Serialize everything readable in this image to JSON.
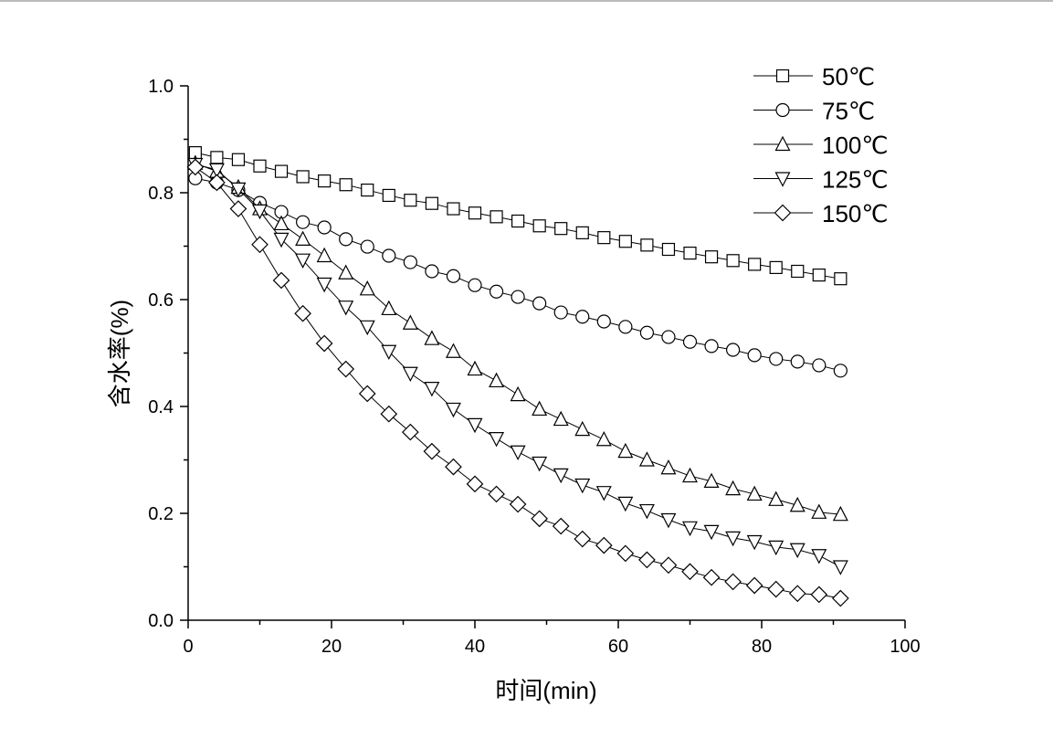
{
  "chart_data": {
    "type": "line",
    "title": "",
    "xlabel": "时间(min)",
    "ylabel": "含水率(%)",
    "xlim": [
      0,
      100
    ],
    "ylim": [
      0,
      1.0
    ],
    "xticks": [
      "0",
      "20",
      "40",
      "60",
      "80",
      "100"
    ],
    "yticks": [
      "0.0",
      "0.2",
      "0.4",
      "0.6",
      "0.8",
      "1.0"
    ],
    "grid": false,
    "legend_position": "top-right",
    "x": [
      1,
      4,
      7,
      10,
      13,
      16,
      19,
      22,
      25,
      28,
      31,
      34,
      37,
      40,
      43,
      46,
      49,
      52,
      55,
      58,
      61,
      64,
      67,
      70,
      73,
      76,
      79,
      82,
      85,
      88,
      91
    ],
    "series": [
      {
        "name": "50℃",
        "marker": "square",
        "values": [
          0.875,
          0.866,
          0.862,
          0.85,
          0.84,
          0.83,
          0.822,
          0.815,
          0.805,
          0.795,
          0.786,
          0.78,
          0.77,
          0.762,
          0.755,
          0.747,
          0.738,
          0.733,
          0.725,
          0.716,
          0.709,
          0.702,
          0.694,
          0.687,
          0.68,
          0.673,
          0.666,
          0.66,
          0.653,
          0.646,
          0.639
        ]
      },
      {
        "name": "75℃",
        "marker": "circle",
        "values": [
          0.827,
          0.819,
          0.805,
          0.781,
          0.764,
          0.745,
          0.735,
          0.713,
          0.699,
          0.682,
          0.67,
          0.653,
          0.644,
          0.627,
          0.615,
          0.605,
          0.593,
          0.576,
          0.568,
          0.559,
          0.549,
          0.538,
          0.53,
          0.521,
          0.513,
          0.506,
          0.496,
          0.489,
          0.484,
          0.477,
          0.467
        ]
      },
      {
        "name": "100℃",
        "marker": "triangle-up",
        "values": [
          0.855,
          0.84,
          0.81,
          0.77,
          0.742,
          0.713,
          0.682,
          0.65,
          0.62,
          0.583,
          0.556,
          0.527,
          0.503,
          0.47,
          0.448,
          0.422,
          0.395,
          0.376,
          0.357,
          0.338,
          0.316,
          0.3,
          0.285,
          0.27,
          0.26,
          0.246,
          0.236,
          0.226,
          0.215,
          0.202,
          0.198
        ]
      },
      {
        "name": "125℃",
        "marker": "triangle-down",
        "values": [
          0.853,
          0.843,
          0.807,
          0.766,
          0.713,
          0.674,
          0.629,
          0.586,
          0.549,
          0.503,
          0.462,
          0.434,
          0.395,
          0.366,
          0.34,
          0.315,
          0.294,
          0.272,
          0.253,
          0.239,
          0.219,
          0.205,
          0.188,
          0.173,
          0.166,
          0.154,
          0.147,
          0.137,
          0.132,
          0.121,
          0.1
        ]
      },
      {
        "name": "150℃",
        "marker": "diamond",
        "values": [
          0.848,
          0.819,
          0.77,
          0.703,
          0.636,
          0.574,
          0.518,
          0.47,
          0.424,
          0.386,
          0.352,
          0.316,
          0.287,
          0.255,
          0.236,
          0.217,
          0.19,
          0.176,
          0.152,
          0.14,
          0.125,
          0.113,
          0.103,
          0.091,
          0.08,
          0.072,
          0.065,
          0.058,
          0.05,
          0.048,
          0.041
        ]
      }
    ]
  }
}
